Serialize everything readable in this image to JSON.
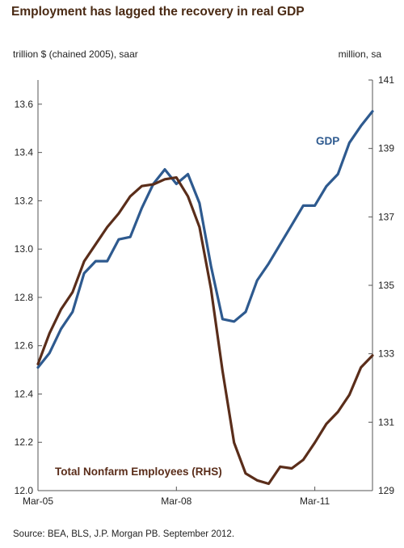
{
  "title": "Employment has lagged the recovery in real GDP",
  "left_unit": "trillion $ (chained 2005), saar",
  "right_unit": "million, sa",
  "source": "Source: BEA, BLS, J.P. Morgan PB. September 2012.",
  "chart_data": {
    "type": "line",
    "x_tick_labels": [
      "Mar-05",
      "Mar-08",
      "Mar-11"
    ],
    "x_tick_positions": [
      0,
      12,
      24
    ],
    "x": [
      "Mar-05",
      "Jun-05",
      "Sep-05",
      "Dec-05",
      "Mar-06",
      "Jun-06",
      "Sep-06",
      "Dec-06",
      "Mar-07",
      "Jun-07",
      "Sep-07",
      "Dec-07",
      "Mar-08",
      "Jun-08",
      "Sep-08",
      "Dec-08",
      "Mar-09",
      "Jun-09",
      "Sep-09",
      "Dec-09",
      "Mar-10",
      "Jun-10",
      "Sep-10",
      "Dec-10",
      "Mar-11",
      "Jun-11",
      "Sep-11",
      "Dec-11",
      "Mar-12",
      "Jun-12"
    ],
    "left_axis": {
      "min": 12.0,
      "max": 13.7,
      "ticks": [
        12.0,
        12.2,
        12.4,
        12.6,
        12.8,
        13.0,
        13.2,
        13.4,
        13.6
      ]
    },
    "right_axis": {
      "min": 129,
      "max": 141,
      "ticks": [
        129,
        131,
        133,
        135,
        137,
        139,
        141
      ]
    },
    "series": [
      {
        "name": "GDP",
        "axis": "left",
        "color": "#2e5a8f",
        "values": [
          12.51,
          12.57,
          12.67,
          12.74,
          12.9,
          12.95,
          12.95,
          13.04,
          13.05,
          13.17,
          13.27,
          13.33,
          13.27,
          13.31,
          13.19,
          12.93,
          12.71,
          12.7,
          12.74,
          12.87,
          12.94,
          13.02,
          13.1,
          13.18,
          13.18,
          13.26,
          13.31,
          13.44,
          13.51,
          13.57
        ]
      },
      {
        "name": "Total Nonfarm Employees (RHS)",
        "axis": "right",
        "color": "#5a2d1a",
        "values": [
          132.7,
          133.6,
          134.3,
          134.8,
          135.7,
          136.2,
          136.7,
          137.1,
          137.6,
          137.9,
          137.95,
          138.1,
          138.15,
          137.6,
          136.7,
          134.9,
          132.5,
          130.4,
          129.5,
          129.3,
          129.2,
          129.7,
          129.65,
          129.9,
          130.4,
          130.95,
          131.3,
          131.8,
          132.6,
          132.95
        ]
      }
    ],
    "series_labels": [
      {
        "text": "GDP",
        "color": "#2e5a8f"
      },
      {
        "text": "Total Nonfarm Employees (RHS)",
        "color": "#5a2d1a"
      }
    ]
  }
}
